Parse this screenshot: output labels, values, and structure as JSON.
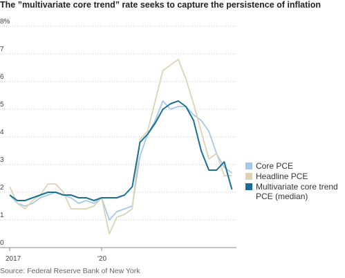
{
  "chart_data": {
    "type": "line",
    "title": "The ”multivariate core trend” rate seeks to capture the persistence of inflation",
    "source": "Source: Federal Reserve Bank of New York",
    "x": [
      2017,
      2017.25,
      2017.5,
      2017.75,
      2018,
      2018.25,
      2018.5,
      2018.75,
      2019,
      2019.25,
      2019.5,
      2019.75,
      2020,
      2020.25,
      2020.5,
      2020.75,
      2021,
      2021.25,
      2021.5,
      2021.75,
      2022,
      2022.25,
      2022.5,
      2022.75,
      2023,
      2023.25,
      2023.5,
      2023.75,
      2024,
      2024.25
    ],
    "series": [
      {
        "name": "Core PCE",
        "color": "#a4c8e8",
        "values": [
          1.9,
          1.6,
          1.5,
          1.6,
          1.8,
          1.9,
          2.0,
          1.9,
          1.8,
          1.6,
          1.7,
          1.6,
          1.8,
          1.0,
          1.3,
          1.4,
          1.5,
          3.3,
          4.1,
          4.6,
          5.3,
          5.0,
          5.1,
          5.1,
          4.8,
          4.6,
          4.2,
          3.4,
          2.9,
          2.7
        ]
      },
      {
        "name": "Headline PCE",
        "color": "#ddd3b4",
        "values": [
          2.2,
          1.6,
          1.4,
          1.7,
          1.9,
          2.3,
          2.3,
          2.0,
          1.4,
          1.4,
          1.4,
          1.5,
          1.8,
          0.5,
          1.1,
          1.2,
          1.4,
          3.9,
          4.2,
          5.3,
          6.4,
          6.6,
          6.8,
          6.1,
          5.2,
          4.2,
          3.2,
          3.4,
          2.6,
          2.6
        ]
      },
      {
        "name": "Multivariate core trend PCE (median)",
        "color": "#1a6e94",
        "values": [
          1.9,
          1.7,
          1.7,
          1.8,
          1.9,
          2.0,
          2.0,
          1.9,
          1.9,
          1.8,
          1.8,
          1.7,
          1.8,
          1.8,
          1.8,
          1.9,
          2.2,
          3.8,
          4.1,
          4.5,
          5.0,
          5.2,
          5.3,
          5.1,
          4.6,
          3.5,
          2.8,
          2.8,
          3.1,
          2.1
        ]
      }
    ],
    "xlim": [
      2017,
      2024.4
    ],
    "xticks": [
      2017,
      {
        "value": 2020,
        "label": "'20"
      }
    ],
    "ylim": [
      0,
      8
    ],
    "yticks": [
      0,
      1,
      2,
      3,
      4,
      5,
      6,
      7,
      {
        "value": 8,
        "label": "8%"
      }
    ],
    "grid": true
  }
}
